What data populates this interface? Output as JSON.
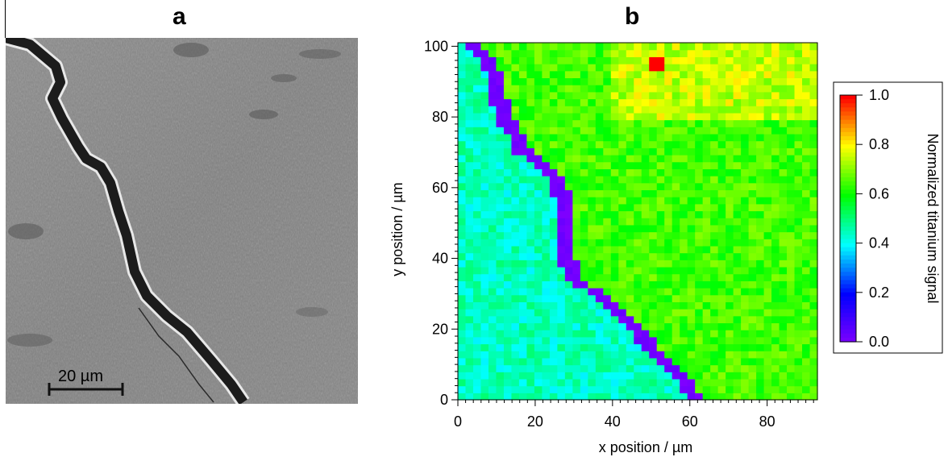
{
  "panels": {
    "a": {
      "letter": "a",
      "scale_bar_label": "20 µm"
    },
    "b": {
      "letter": "b"
    }
  },
  "chart_data": {
    "type": "heatmap",
    "title": "",
    "xlabel": "x position / µm",
    "ylabel": "y position / µm",
    "xlim": [
      0,
      93
    ],
    "ylim": [
      0,
      101
    ],
    "x_ticks": [
      0,
      20,
      40,
      60,
      80
    ],
    "y_ticks": [
      0,
      20,
      40,
      60,
      80,
      100
    ],
    "colorbar": {
      "label": "Normalized titanium signal",
      "range": [
        0.0,
        1.0
      ],
      "ticks": [
        "1.0",
        "0.8",
        "0.6",
        "0.4",
        "0.2",
        "0.0"
      ],
      "colors": [
        "#7f00ff",
        "#0000ff",
        "#00ffff",
        "#00ff00",
        "#ffff00",
        "#ff0000"
      ]
    },
    "grid": false,
    "description_values": {
      "crack_path_y_to_x": [
        [
          100,
          4.5
        ],
        [
          95,
          8
        ],
        [
          90,
          10
        ],
        [
          85,
          10.5
        ],
        [
          80,
          12
        ],
        [
          75,
          15
        ],
        [
          70,
          17
        ],
        [
          66,
          22
        ],
        [
          62,
          26
        ],
        [
          55,
          27.5
        ],
        [
          48,
          28
        ],
        [
          40,
          28.5
        ],
        [
          34,
          30
        ],
        [
          30,
          37
        ],
        [
          25,
          41
        ],
        [
          20,
          46
        ],
        [
          15,
          50
        ],
        [
          10,
          55
        ],
        [
          5,
          59
        ],
        [
          1,
          61
        ]
      ],
      "left_region_value": 0.45,
      "right_region_value": 0.65,
      "upper_right_region_value": 0.75,
      "crack_value": 0.0,
      "hot_spot": {
        "x": 52,
        "y": 96,
        "value": 1.0
      }
    }
  }
}
